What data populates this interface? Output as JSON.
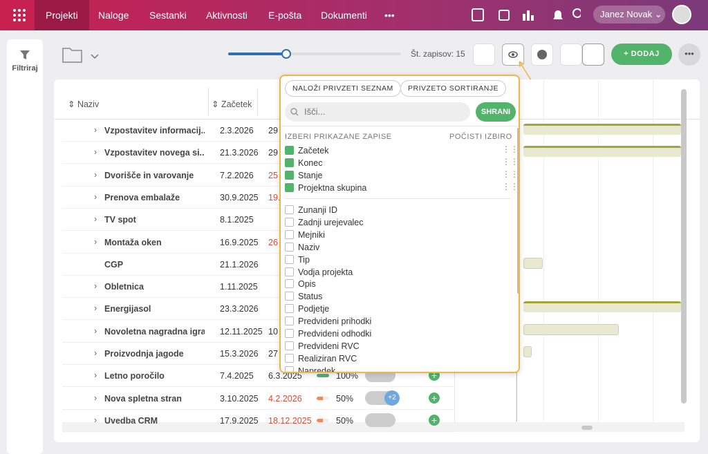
{
  "nav": {
    "items": [
      "Projekti",
      "Naloge",
      "Sestanki",
      "Aktivnosti",
      "E-pošta",
      "Dokumenti"
    ],
    "user": "Janez Novak"
  },
  "sidebar": {
    "filter": "Filtriraj"
  },
  "toolbar": {
    "record_count": "Št. zapisov: 15",
    "add": "DODAJ"
  },
  "table": {
    "headers": [
      "Naziv",
      "Začetek"
    ],
    "rows": [
      {
        "name": "Vzpostavitev informacij...",
        "start": "2.3.2026",
        "end": "29",
        "overdue": false,
        "expand": true
      },
      {
        "name": "Vzpostavitev novega si...",
        "start": "21.3.2026",
        "end": "29",
        "overdue": false,
        "expand": true
      },
      {
        "name": "Dvorišče in varovanje",
        "start": "7.2.2026",
        "end": "25",
        "overdue": true,
        "expand": true
      },
      {
        "name": "Prenova embalaže",
        "start": "30.9.2025",
        "end": "19.",
        "overdue": true,
        "expand": true
      },
      {
        "name": "TV spot",
        "start": "8.1.2025",
        "end": null,
        "overdue": false,
        "expand": true
      },
      {
        "name": "Montaža oken",
        "start": "16.9.2025",
        "end": "26",
        "overdue": true,
        "expand": true
      },
      {
        "name": "CGP",
        "start": "21.1.2026",
        "end": null,
        "overdue": false,
        "expand": false
      },
      {
        "name": "Obletnica",
        "start": "1.11.2025",
        "end": null,
        "overdue": false,
        "expand": true
      },
      {
        "name": "Energijasol",
        "start": "23.3.2026",
        "end": null,
        "overdue": false,
        "expand": true
      },
      {
        "name": "Novoletna nagradna igra",
        "start": "12.11.2025",
        "end": "10",
        "overdue": false,
        "expand": true
      },
      {
        "name": "Proizvodnja jagode",
        "start": "15.3.2026",
        "end": "27",
        "overdue": false,
        "expand": true
      },
      {
        "name": "Letno poročilo",
        "start": "7.4.2025",
        "end": "6.3.2025",
        "overdue": false,
        "expand": true,
        "progress": "100%"
      },
      {
        "name": "Nova spletna stran",
        "start": "3.10.2025",
        "end": "4.2.2026",
        "overdue": true,
        "expand": true,
        "progress": "50%",
        "extra": "+2"
      },
      {
        "name": "Uvedba CRM",
        "start": "17.9.2025",
        "end": "18.12.2025",
        "overdue": true,
        "expand": true,
        "progress": "50%"
      }
    ]
  },
  "popup": {
    "load_default": "NALOŽI PRIVZETI SEZNAM",
    "default_sort": "PRIVZETO SORTIRANJE",
    "search_placeholder": "Išči...",
    "save": "SHRANI",
    "section": "IZBERI PRIKAZANE ZAPISE",
    "clear": "POČISTI IZBIRO",
    "checked": [
      "Začetek",
      "Konec",
      "Stanje",
      "Projektna skupina"
    ],
    "unchecked": [
      "Zunanji ID",
      "Zadnji urejevalec",
      "Mejniki",
      "Naziv",
      "Tip",
      "Vodja projekta",
      "Opis",
      "Status",
      "Podjetje",
      "Predvideni prihodki",
      "Predvideni odhodki",
      "Predvideni RVC",
      "Realiziran RVC",
      "Napredek"
    ]
  }
}
